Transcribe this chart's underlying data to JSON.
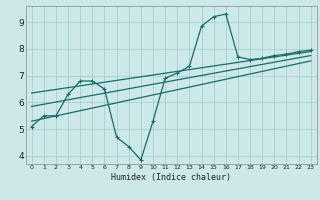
{
  "xlabel": "Humidex (Indice chaleur)",
  "bg_color": "#cce8e8",
  "grid_color": "#aacfcf",
  "line_color": "#1a6b6b",
  "xlim": [
    -0.5,
    23.5
  ],
  "ylim": [
    3.7,
    9.6
  ],
  "xticks": [
    0,
    1,
    2,
    3,
    4,
    5,
    6,
    7,
    8,
    9,
    10,
    11,
    12,
    13,
    14,
    15,
    16,
    17,
    18,
    19,
    20,
    21,
    22,
    23
  ],
  "yticks": [
    4,
    5,
    6,
    7,
    8,
    9
  ],
  "curve_x": [
    0,
    1,
    2,
    3,
    4,
    5,
    6,
    7,
    8,
    9,
    10,
    11,
    12,
    13,
    14,
    15,
    16,
    17,
    18,
    19,
    20,
    21,
    22,
    23
  ],
  "curve_y": [
    5.1,
    5.5,
    5.5,
    6.3,
    6.8,
    6.8,
    6.5,
    4.7,
    4.35,
    3.85,
    5.3,
    6.9,
    7.1,
    7.35,
    8.85,
    9.2,
    9.3,
    7.7,
    7.6,
    7.65,
    7.75,
    7.8,
    7.9,
    7.95
  ],
  "line1_x": [
    0,
    23
  ],
  "line1_y": [
    5.3,
    7.55
  ],
  "line2_x": [
    0,
    23
  ],
  "line2_y": [
    5.85,
    7.75
  ],
  "line3_x": [
    0,
    23
  ],
  "line3_y": [
    6.35,
    7.9
  ]
}
